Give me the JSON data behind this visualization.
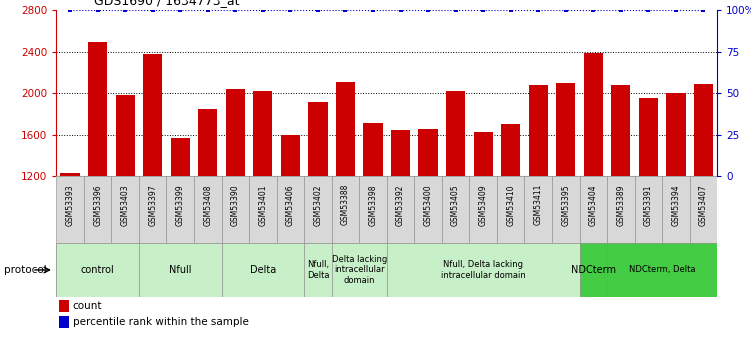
{
  "title": "GDS1690 / 1634773_at",
  "samples": [
    "GSM53393",
    "GSM53396",
    "GSM53403",
    "GSM53397",
    "GSM53399",
    "GSM53408",
    "GSM53390",
    "GSM53401",
    "GSM53406",
    "GSM53402",
    "GSM53388",
    "GSM53398",
    "GSM53392",
    "GSM53400",
    "GSM53405",
    "GSM53409",
    "GSM53410",
    "GSM53411",
    "GSM53395",
    "GSM53404",
    "GSM53389",
    "GSM53391",
    "GSM53394",
    "GSM53407"
  ],
  "counts": [
    1230,
    2490,
    1980,
    2380,
    1570,
    1850,
    2040,
    2020,
    1600,
    1910,
    2110,
    1710,
    1640,
    1650,
    2020,
    1620,
    1700,
    2080,
    2100,
    2390,
    2080,
    1950,
    2000,
    2090
  ],
  "percentile": [
    100,
    100,
    100,
    100,
    100,
    100,
    100,
    100,
    100,
    100,
    100,
    100,
    100,
    100,
    100,
    100,
    100,
    100,
    100,
    100,
    100,
    100,
    100,
    100
  ],
  "bar_color": "#cc0000",
  "percentile_color": "#0000cc",
  "ylim_left": [
    1200,
    2800
  ],
  "ylim_right": [
    0,
    100
  ],
  "yticks_left": [
    1200,
    1600,
    2000,
    2400,
    2800
  ],
  "yticks_right": [
    0,
    25,
    50,
    75,
    100
  ],
  "ytick_labels_right": [
    "0",
    "25",
    "50",
    "75",
    "100%"
  ],
  "grid_values": [
    1600,
    2000,
    2400
  ],
  "protocols": [
    {
      "label": "control",
      "start": 0,
      "end": 2,
      "color": "#c8f0c8"
    },
    {
      "label": "Nfull",
      "start": 3,
      "end": 5,
      "color": "#c8f0c8"
    },
    {
      "label": "Delta",
      "start": 6,
      "end": 8,
      "color": "#c8f0c8"
    },
    {
      "label": "Nfull,\nDelta",
      "start": 9,
      "end": 9,
      "color": "#c8f0c8"
    },
    {
      "label": "Delta lacking\nintracellular\ndomain",
      "start": 10,
      "end": 11,
      "color": "#c8f0c8"
    },
    {
      "label": "Nfull, Delta lacking\nintracellular domain",
      "start": 12,
      "end": 18,
      "color": "#c8f0c8"
    },
    {
      "label": "NDCterm",
      "start": 19,
      "end": 19,
      "color": "#44cc44"
    },
    {
      "label": "NDCterm, Delta",
      "start": 20,
      "end": 23,
      "color": "#44cc44"
    }
  ],
  "protocol_label": "protocol",
  "legend_count_label": "count",
  "legend_percentile_label": "percentile rank within the sample",
  "sample_bg_color": "#d8d8d8",
  "sample_border_color": "#888888"
}
